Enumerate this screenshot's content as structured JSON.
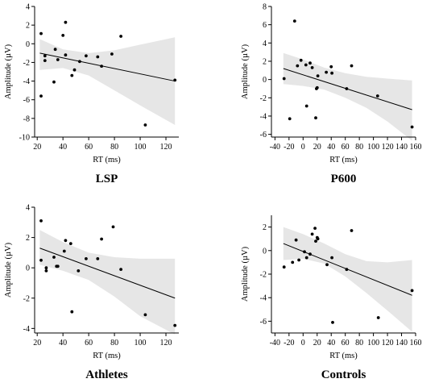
{
  "chart_data": [
    {
      "type": "scatter",
      "title": "LSP",
      "xlabel": "RT (ms)",
      "ylabel": "Amplitude (µV)",
      "xlim": [
        18,
        130
      ],
      "ylim": [
        -10,
        4
      ],
      "xticks": [
        20,
        40,
        60,
        80,
        100,
        120
      ],
      "yticks": [
        -10,
        -8,
        -6,
        -4,
        -2,
        0,
        2,
        4
      ],
      "points": [
        {
          "x": 23,
          "y": 1.1
        },
        {
          "x": 23,
          "y": -5.6
        },
        {
          "x": 26,
          "y": -1.3
        },
        {
          "x": 26,
          "y": -1.8
        },
        {
          "x": 33,
          "y": -4.1
        },
        {
          "x": 34,
          "y": -0.6
        },
        {
          "x": 36,
          "y": -1.7
        },
        {
          "x": 40,
          "y": 0.9
        },
        {
          "x": 42,
          "y": 2.3
        },
        {
          "x": 42,
          "y": -1.2
        },
        {
          "x": 47,
          "y": -3.4
        },
        {
          "x": 49,
          "y": -2.8
        },
        {
          "x": 53,
          "y": -1.9
        },
        {
          "x": 58,
          "y": -1.3
        },
        {
          "x": 67,
          "y": -1.4
        },
        {
          "x": 70,
          "y": -2.4
        },
        {
          "x": 78,
          "y": -1.1
        },
        {
          "x": 85,
          "y": 0.8
        },
        {
          "x": 104,
          "y": -8.7
        },
        {
          "x": 127,
          "y": -3.9
        }
      ],
      "fit": {
        "x": [
          22,
          127
        ],
        "y": [
          -1.0,
          -4.0
        ]
      },
      "band": {
        "x": [
          22,
          40,
          60,
          80,
          100,
          127
        ],
        "upper": [
          0.5,
          -0.6,
          -1.0,
          -0.7,
          -0.1,
          0.7
        ],
        "lower": [
          -2.8,
          -2.6,
          -3.4,
          -5.0,
          -6.6,
          -8.7
        ]
      }
    },
    {
      "type": "scatter",
      "title": "P600",
      "xlabel": "RT (ms)",
      "ylabel": "Amplitude (µV)",
      "xlim": [
        -45,
        160
      ],
      "ylim": [
        -6.3,
        8
      ],
      "xticks": [
        -40,
        -20,
        0,
        20,
        40,
        60,
        80,
        100,
        120,
        140,
        160
      ],
      "yticks": [
        -6,
        -4,
        -2,
        0,
        2,
        4,
        6,
        8
      ],
      "points": [
        {
          "x": -27,
          "y": 0.1
        },
        {
          "x": -19,
          "y": -4.3
        },
        {
          "x": -12,
          "y": 6.4
        },
        {
          "x": -8,
          "y": 1.5
        },
        {
          "x": -3,
          "y": 2.1
        },
        {
          "x": 4,
          "y": 1.6
        },
        {
          "x": 5,
          "y": -2.9
        },
        {
          "x": 10,
          "y": 1.8
        },
        {
          "x": 13,
          "y": 1.3
        },
        {
          "x": 18,
          "y": -4.2
        },
        {
          "x": 19,
          "y": -1.0
        },
        {
          "x": 20,
          "y": -0.9
        },
        {
          "x": 21,
          "y": 0.4
        },
        {
          "x": 33,
          "y": 0.8
        },
        {
          "x": 40,
          "y": 1.4
        },
        {
          "x": 41,
          "y": 0.7
        },
        {
          "x": 62,
          "y": -1.0
        },
        {
          "x": 69,
          "y": 1.5
        },
        {
          "x": 106,
          "y": -1.8
        },
        {
          "x": 155,
          "y": -5.2
        }
      ],
      "fit": {
        "x": [
          -28,
          155
        ],
        "y": [
          1.2,
          -3.3
        ]
      },
      "band": {
        "x": [
          -28,
          0,
          30,
          60,
          90,
          120,
          155
        ],
        "upper": [
          2.9,
          2.2,
          1.3,
          0.7,
          0.3,
          0.1,
          -0.1
        ],
        "lower": [
          -0.5,
          -0.7,
          -1.1,
          -2.0,
          -3.1,
          -4.6,
          -6.7
        ]
      }
    },
    {
      "type": "scatter",
      "title": "Athletes",
      "xlabel": "RT (ms)",
      "ylabel": "Amplitude (µV)",
      "xlim": [
        18,
        130
      ],
      "ylim": [
        -4.3,
        4
      ],
      "xticks": [
        20,
        40,
        60,
        80,
        100,
        120
      ],
      "yticks": [
        -4,
        -2,
        0,
        2,
        4
      ],
      "points": [
        {
          "x": 23,
          "y": 3.1
        },
        {
          "x": 23,
          "y": 0.5
        },
        {
          "x": 27,
          "y": 0.0
        },
        {
          "x": 27,
          "y": -0.2
        },
        {
          "x": 33,
          "y": 0.7
        },
        {
          "x": 35,
          "y": 0.1
        },
        {
          "x": 36,
          "y": 0.1
        },
        {
          "x": 41,
          "y": 1.1
        },
        {
          "x": 42,
          "y": 1.8
        },
        {
          "x": 46,
          "y": 1.6
        },
        {
          "x": 47,
          "y": -2.9
        },
        {
          "x": 52,
          "y": -0.2
        },
        {
          "x": 58,
          "y": 0.6
        },
        {
          "x": 67,
          "y": 0.6
        },
        {
          "x": 70,
          "y": 1.9
        },
        {
          "x": 79,
          "y": 2.7
        },
        {
          "x": 85,
          "y": -0.1
        },
        {
          "x": 104,
          "y": -3.1
        },
        {
          "x": 127,
          "y": -3.8
        }
      ],
      "fit": {
        "x": [
          22,
          127
        ],
        "y": [
          1.3,
          -2.0
        ]
      },
      "band": {
        "x": [
          22,
          40,
          60,
          80,
          100,
          127
        ],
        "upper": [
          2.5,
          1.7,
          1.0,
          0.7,
          0.6,
          0.6
        ],
        "lower": [
          0.2,
          -0.2,
          -0.8,
          -1.9,
          -3.2,
          -4.4
        ]
      }
    },
    {
      "type": "scatter",
      "title": "Controls",
      "xlabel": "RT (ms)",
      "ylabel": "Amplitude (µV)",
      "xlim": [
        -45,
        160
      ],
      "ylim": [
        -7,
        3
      ],
      "xticks": [
        -40,
        -20,
        0,
        20,
        40,
        60,
        80,
        100,
        120,
        140,
        160
      ],
      "yticks": [
        -6,
        -4,
        -2,
        0,
        2
      ],
      "points": [
        {
          "x": -27,
          "y": -1.4
        },
        {
          "x": -15,
          "y": -1.0
        },
        {
          "x": -10,
          "y": 0.9
        },
        {
          "x": -6,
          "y": -0.8
        },
        {
          "x": 2,
          "y": -0.1
        },
        {
          "x": 5,
          "y": -0.6
        },
        {
          "x": 10,
          "y": -0.3
        },
        {
          "x": 13,
          "y": 1.4
        },
        {
          "x": 17,
          "y": 1.9
        },
        {
          "x": 18,
          "y": 0.8
        },
        {
          "x": 20,
          "y": 1.1
        },
        {
          "x": 21,
          "y": 1.0
        },
        {
          "x": 34,
          "y": -1.2
        },
        {
          "x": 41,
          "y": -0.6
        },
        {
          "x": 42,
          "y": -6.1
        },
        {
          "x": 62,
          "y": -1.6
        },
        {
          "x": 69,
          "y": 1.7
        },
        {
          "x": 107,
          "y": -5.7
        },
        {
          "x": 155,
          "y": -3.4
        }
      ],
      "fit": {
        "x": [
          -28,
          155
        ],
        "y": [
          0.6,
          -3.8
        ]
      },
      "band": {
        "x": [
          -28,
          0,
          30,
          60,
          90,
          120,
          155
        ],
        "upper": [
          2.0,
          1.4,
          0.6,
          -0.3,
          -0.9,
          -1.0,
          -0.8
        ],
        "lower": [
          -0.8,
          -0.7,
          -1.1,
          -2.2,
          -3.6,
          -5.1,
          -6.9
        ]
      }
    }
  ],
  "colors": {
    "band": "#e6e6e6",
    "points": "#000000",
    "fit_line": "#000000",
    "axes": "#000000"
  }
}
